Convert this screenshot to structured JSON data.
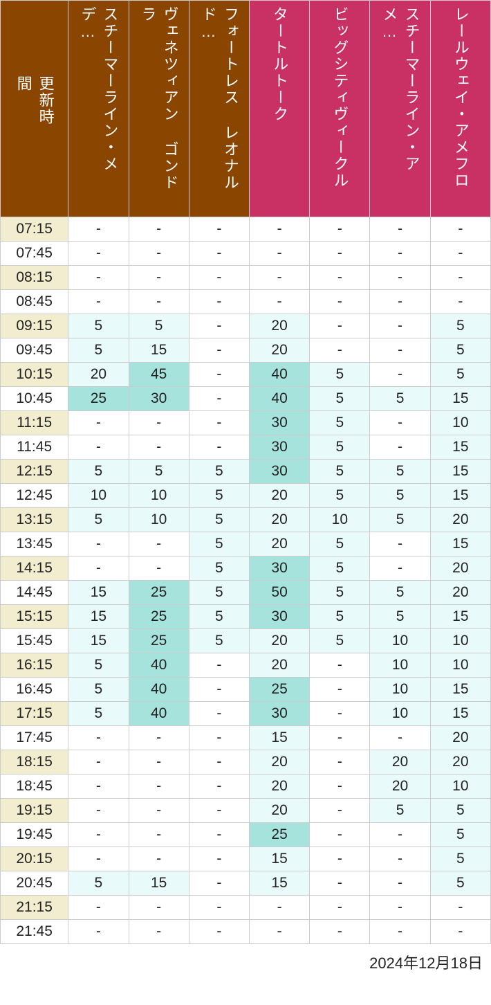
{
  "header": {
    "time_label": "更新時間",
    "brown_bg": "#8a4500",
    "pink_bg": "#c93064",
    "columns": [
      {
        "label": "スチーマーライン・メデ…",
        "color": "brown"
      },
      {
        "label": "ヴェネツィアン ゴンドラ",
        "color": "brown"
      },
      {
        "label": "フォートレス レオナルド…",
        "color": "brown"
      },
      {
        "label": "タートルトーク",
        "color": "pink"
      },
      {
        "label": "ビッグシティヴィークル",
        "color": "pink"
      },
      {
        "label": "スチーマーライン・アメ…",
        "color": "pink"
      },
      {
        "label": "レールウェイ・アメフロ",
        "color": "pink"
      }
    ]
  },
  "thresholds": {
    "low": 5,
    "mid": 20,
    "high": 25
  },
  "colors": {
    "time_bg_odd": "#f2edcf",
    "time_bg_even": "#ffffff",
    "cell_none": "#ffffff",
    "cell_low": "#e8faf9",
    "cell_mid": "#e8faf9",
    "cell_high": "#a7e3dd",
    "border": "#cccccc",
    "text": "#222222"
  },
  "rows": [
    {
      "time": "07:15",
      "v": [
        null,
        null,
        null,
        null,
        null,
        null,
        null
      ]
    },
    {
      "time": "07:45",
      "v": [
        null,
        null,
        null,
        null,
        null,
        null,
        null
      ]
    },
    {
      "time": "08:15",
      "v": [
        null,
        null,
        null,
        null,
        null,
        null,
        null
      ]
    },
    {
      "time": "08:45",
      "v": [
        null,
        null,
        null,
        null,
        null,
        null,
        null
      ]
    },
    {
      "time": "09:15",
      "v": [
        5,
        5,
        null,
        20,
        null,
        null,
        5
      ]
    },
    {
      "time": "09:45",
      "v": [
        5,
        15,
        null,
        20,
        null,
        null,
        5
      ]
    },
    {
      "time": "10:15",
      "v": [
        20,
        45,
        null,
        40,
        5,
        null,
        5
      ]
    },
    {
      "time": "10:45",
      "v": [
        25,
        30,
        null,
        40,
        5,
        5,
        15
      ]
    },
    {
      "time": "11:15",
      "v": [
        null,
        null,
        null,
        30,
        5,
        null,
        10
      ]
    },
    {
      "time": "11:45",
      "v": [
        null,
        null,
        null,
        30,
        5,
        null,
        15
      ]
    },
    {
      "time": "12:15",
      "v": [
        5,
        5,
        5,
        30,
        5,
        5,
        15
      ]
    },
    {
      "time": "12:45",
      "v": [
        10,
        10,
        5,
        20,
        5,
        5,
        15
      ]
    },
    {
      "time": "13:15",
      "v": [
        5,
        10,
        5,
        20,
        10,
        5,
        20
      ]
    },
    {
      "time": "13:45",
      "v": [
        null,
        null,
        5,
        20,
        5,
        null,
        15
      ]
    },
    {
      "time": "14:15",
      "v": [
        null,
        null,
        5,
        30,
        5,
        null,
        20
      ]
    },
    {
      "time": "14:45",
      "v": [
        15,
        25,
        5,
        50,
        5,
        5,
        20
      ]
    },
    {
      "time": "15:15",
      "v": [
        15,
        25,
        5,
        30,
        5,
        5,
        15
      ]
    },
    {
      "time": "15:45",
      "v": [
        15,
        25,
        5,
        20,
        5,
        10,
        10
      ]
    },
    {
      "time": "16:15",
      "v": [
        5,
        40,
        null,
        20,
        null,
        10,
        10
      ]
    },
    {
      "time": "16:45",
      "v": [
        5,
        40,
        null,
        25,
        null,
        10,
        15
      ]
    },
    {
      "time": "17:15",
      "v": [
        5,
        40,
        null,
        30,
        null,
        10,
        15
      ]
    },
    {
      "time": "17:45",
      "v": [
        null,
        null,
        null,
        15,
        null,
        null,
        20
      ]
    },
    {
      "time": "18:15",
      "v": [
        null,
        null,
        null,
        20,
        null,
        20,
        20
      ]
    },
    {
      "time": "18:45",
      "v": [
        null,
        null,
        null,
        20,
        null,
        20,
        10
      ]
    },
    {
      "time": "19:15",
      "v": [
        null,
        null,
        null,
        20,
        null,
        5,
        5
      ]
    },
    {
      "time": "19:45",
      "v": [
        null,
        null,
        null,
        25,
        null,
        null,
        5
      ]
    },
    {
      "time": "20:15",
      "v": [
        null,
        null,
        null,
        15,
        null,
        null,
        5
      ]
    },
    {
      "time": "20:45",
      "v": [
        5,
        15,
        null,
        15,
        null,
        null,
        5
      ]
    },
    {
      "time": "21:15",
      "v": [
        null,
        null,
        null,
        null,
        null,
        null,
        null
      ]
    },
    {
      "time": "21:45",
      "v": [
        null,
        null,
        null,
        null,
        null,
        null,
        null
      ]
    }
  ],
  "footer": {
    "date": "2024年12月18日"
  }
}
